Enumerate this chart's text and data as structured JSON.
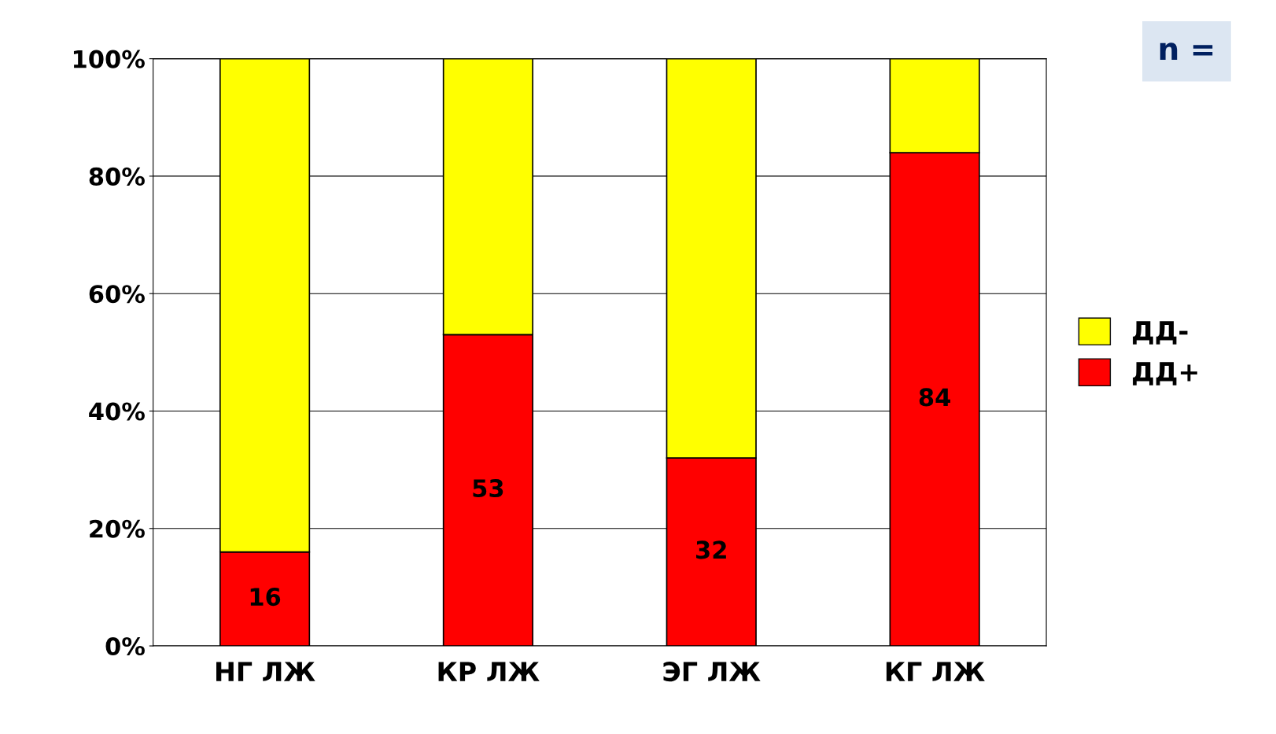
{
  "chart_data": {
    "type": "bar",
    "stacked": true,
    "categories": [
      "НГ ЛЖ",
      "КР ЛЖ",
      "ЭГ ЛЖ",
      "КГ ЛЖ"
    ],
    "series": [
      {
        "name": "ДД+",
        "color": "#ff0000",
        "values": [
          16,
          53,
          32,
          84
        ],
        "value_labels": [
          "16",
          "53",
          "32",
          "84"
        ]
      },
      {
        "name": "ДД-",
        "color": "#ffff00",
        "values": [
          84,
          47,
          68,
          16
        ]
      }
    ],
    "ylim": [
      0,
      100
    ],
    "yticks": [
      {
        "value": 0,
        "label": "0%"
      },
      {
        "value": 20,
        "label": "20%"
      },
      {
        "value": 40,
        "label": "40%"
      },
      {
        "value": 60,
        "label": "60%"
      },
      {
        "value": 80,
        "label": "80%"
      },
      {
        "value": 100,
        "label": "100%"
      }
    ],
    "grid": "y",
    "legend": "right",
    "annotations": [
      "n ="
    ]
  }
}
